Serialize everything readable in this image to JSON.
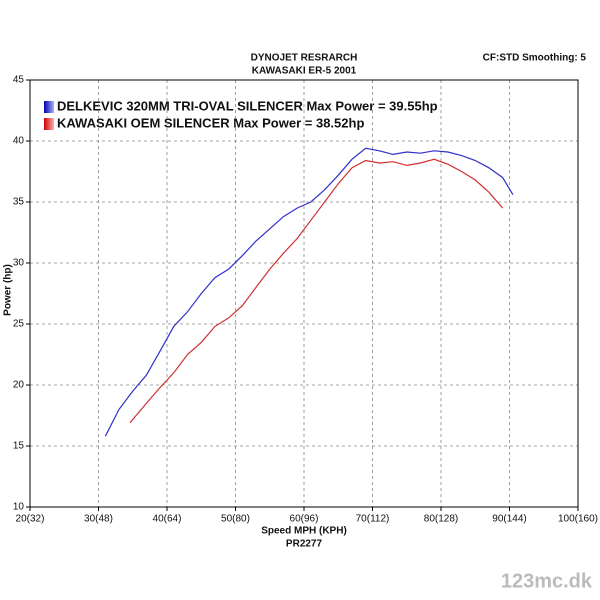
{
  "chart_data": {
    "type": "line",
    "title": "DYNOJET RESRARCH",
    "subtitle": "KAWASAKI ER-5 2001",
    "settings_label": "CF:STD Smoothing: 5",
    "x_label": "Speed MPH (KPH)",
    "run_label": "PR2277",
    "y_label": "Power (hp)",
    "watermark": "123mc.dk",
    "grid": true,
    "xlim": [
      20,
      100
    ],
    "ylim": [
      10,
      45
    ],
    "xticks": [
      {
        "value": 20,
        "label": "20(32)"
      },
      {
        "value": 30,
        "label": "30(48)"
      },
      {
        "value": 40,
        "label": "40(64)"
      },
      {
        "value": 50,
        "label": "50(80)"
      },
      {
        "value": 60,
        "label": "60(96)"
      },
      {
        "value": 70,
        "label": "70(112)"
      },
      {
        "value": 80,
        "label": "80(128)"
      },
      {
        "value": 90,
        "label": "90(144)"
      },
      {
        "value": 100,
        "label": "100(160)"
      }
    ],
    "yticks": [
      10,
      15,
      20,
      25,
      30,
      35,
      40,
      45
    ],
    "series": [
      {
        "name": "DELKEVIC 320MM TRI-OVAL SILENCER  Max Power = 39.55hp",
        "color": "#3030c8",
        "x": [
          31,
          33,
          35,
          37,
          39,
          41,
          43,
          45,
          47,
          49,
          51,
          53,
          55,
          57,
          59,
          61,
          63,
          65,
          67,
          69,
          71,
          73,
          75,
          77,
          79,
          81,
          83,
          85,
          87,
          89,
          90.5
        ],
        "values": [
          15.8,
          18.0,
          19.5,
          20.8,
          22.8,
          24.8,
          26.0,
          27.5,
          28.8,
          29.5,
          30.6,
          31.8,
          32.8,
          33.8,
          34.5,
          35.0,
          36.0,
          37.2,
          38.5,
          39.4,
          39.2,
          38.9,
          39.1,
          39.0,
          39.2,
          39.1,
          38.8,
          38.4,
          37.8,
          37.0,
          35.6
        ]
      },
      {
        "name": "KAWASAKI OEM SILENCER Max Power = 38.52hp",
        "color": "#d03030",
        "x": [
          34.6,
          37,
          39,
          41,
          43,
          45,
          47,
          49,
          51,
          53,
          55,
          57,
          59,
          61,
          63,
          65,
          67,
          69,
          71,
          73,
          75,
          77,
          79,
          81,
          83,
          85,
          87,
          89
        ],
        "values": [
          16.9,
          18.5,
          19.8,
          21.0,
          22.5,
          23.5,
          24.8,
          25.5,
          26.5,
          28.0,
          29.5,
          30.8,
          32.0,
          33.5,
          35.0,
          36.5,
          37.8,
          38.4,
          38.2,
          38.3,
          38.0,
          38.2,
          38.5,
          38.1,
          37.5,
          36.8,
          35.8,
          34.5
        ]
      }
    ]
  }
}
